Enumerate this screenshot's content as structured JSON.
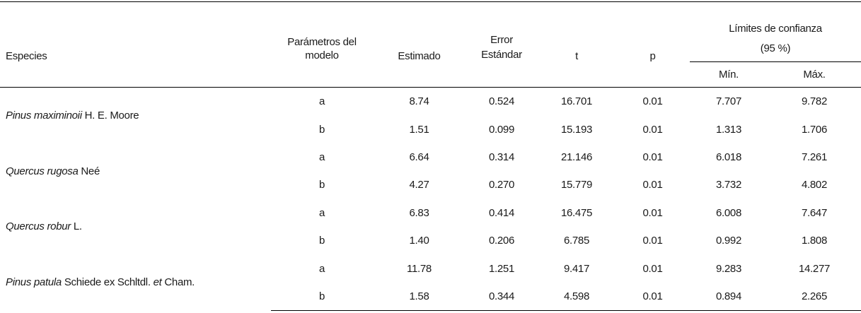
{
  "header": {
    "species": "Especies",
    "parameters": "Parámetros del modelo",
    "estimate": "Estimado",
    "std_error": "Error Estándar",
    "t": "t",
    "p": "p",
    "confidence": "Límites de confianza",
    "confidence_level": "(95 %)",
    "min": "Mín.",
    "max": "Máx."
  },
  "rows": [
    {
      "species_italic": "Pinus maximinoii",
      "species_author": " H. E. Moore",
      "params": [
        {
          "param": "a",
          "estimate": "8.74",
          "se": "0.524",
          "t": "16.701",
          "p": "0.01",
          "min": "7.707",
          "max": "9.782"
        },
        {
          "param": "b",
          "estimate": "1.51",
          "se": "0.099",
          "t": "15.193",
          "p": "0.01",
          "min": "1.313",
          "max": "1.706"
        }
      ]
    },
    {
      "species_italic": "Quercus rugosa",
      "species_author": " Neé",
      "params": [
        {
          "param": "a",
          "estimate": "6.64",
          "se": "0.314",
          "t": "21.146",
          "p": "0.01",
          "min": "6.018",
          "max": "7.261"
        },
        {
          "param": "b",
          "estimate": "4.27",
          "se": "0.270",
          "t": "15.779",
          "p": "0.01",
          "min": "3.732",
          "max": "4.802"
        }
      ]
    },
    {
      "species_italic": "Quercus robur",
      "species_author": " L.",
      "params": [
        {
          "param": "a",
          "estimate": "6.83",
          "se": "0.414",
          "t": "16.475",
          "p": "0.01",
          "min": "6.008",
          "max": "7.647"
        },
        {
          "param": "b",
          "estimate": "1.40",
          "se": "0.206",
          "t": "6.785",
          "p": "0.01",
          "min": "0.992",
          "max": "1.808"
        }
      ]
    },
    {
      "species_italic": "Pinus patula",
      "species_author": " Schiede ex Schltdl. ",
      "species_italic2": "et",
      "species_author2": " Cham.",
      "params": [
        {
          "param": "a",
          "estimate": "11.78",
          "se": "1.251",
          "t": "9.417",
          "p": "0.01",
          "min": "9.283",
          "max": "14.277"
        },
        {
          "param": "b",
          "estimate": "1.58",
          "se": "0.344",
          "t": "4.598",
          "p": "0.01",
          "min": "0.894",
          "max": "2.265"
        }
      ]
    }
  ]
}
